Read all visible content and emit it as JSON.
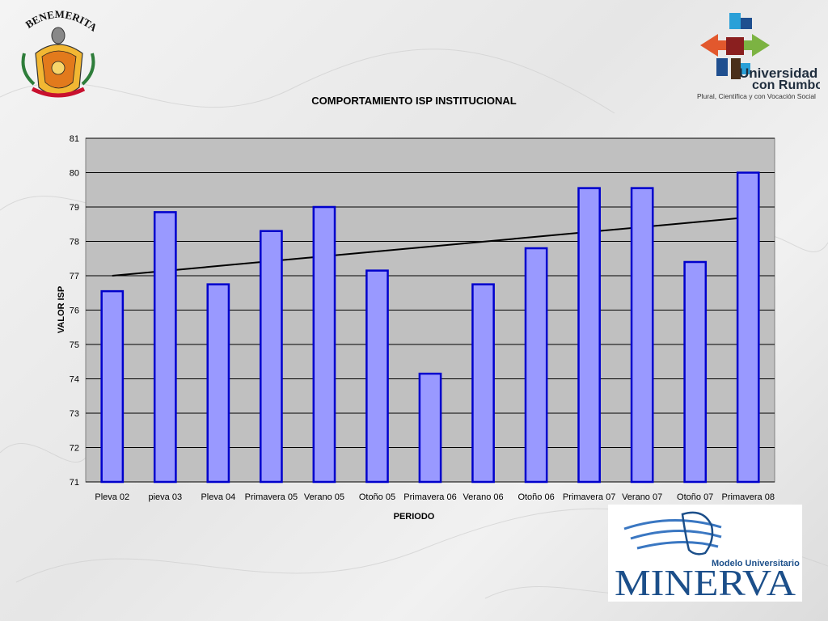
{
  "logos": {
    "left_seal_text": "BENEMERITA",
    "right_line1": "Universidad",
    "right_line2": "con Rumbo",
    "right_tagline": "Plural, Científica y con Vocación Social",
    "bottom_small": "Modelo Universitario",
    "bottom_big": "MINERVA"
  },
  "colors": {
    "bar_fill": "#9999ff",
    "bar_stroke": "#0000cc",
    "plot_bg": "#c0c0c0",
    "trendline": "#000000"
  },
  "chart_data": {
    "type": "bar",
    "title": "COMPORTAMIENTO ISP INSTITUCIONAL",
    "xlabel": "PERIODO",
    "ylabel": "VALOR ISP",
    "ylim": [
      71,
      81
    ],
    "yticks": [
      71,
      72,
      73,
      74,
      75,
      76,
      77,
      78,
      79,
      80,
      81
    ],
    "grid": true,
    "categories": [
      "Pleva 02",
      "pieva 03",
      "Pleva 04",
      "Primavera 05",
      "Verano 05",
      "Otoño 05",
      "Primavera 06",
      "Verano 06",
      "Otoño 06",
      "Primavera 07",
      "Verano 07",
      "Otoño 07",
      "Primavera 08"
    ],
    "values": [
      76.55,
      78.85,
      76.75,
      78.3,
      79.0,
      77.15,
      74.15,
      76.75,
      77.8,
      79.55,
      79.55,
      77.4,
      80.0
    ],
    "trendline": {
      "type": "linear",
      "start": 77.0,
      "end": 78.7
    }
  }
}
